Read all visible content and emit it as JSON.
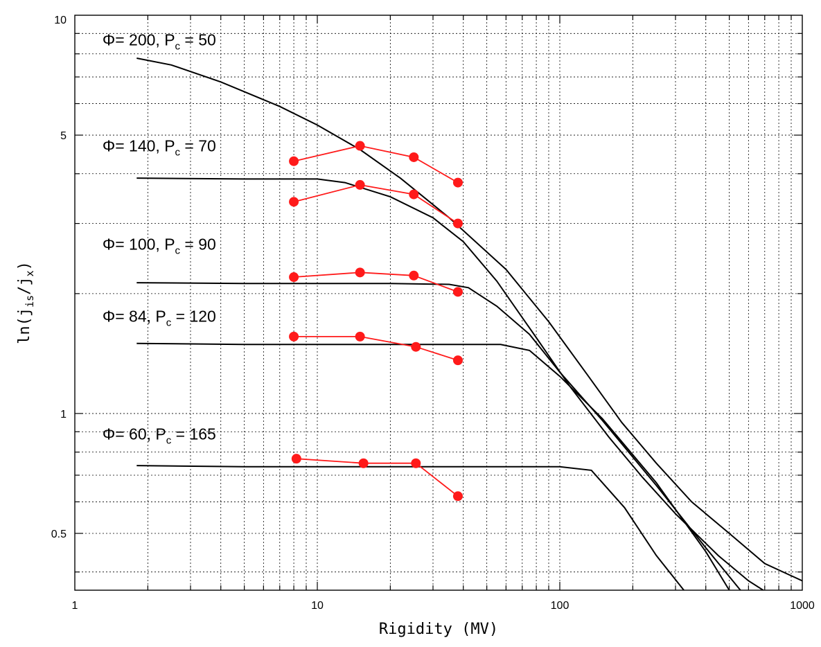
{
  "chart_data": {
    "type": "line",
    "title": "",
    "xlabel": "Rigidity (MV)",
    "ylabel_parts": {
      "base": "ln(j",
      "sub1": "is",
      "mid": "/j",
      "sub2": "x",
      "end": ")"
    },
    "xscale": "log",
    "yscale": "log",
    "xlim": [
      1,
      1000
    ],
    "ylim": [
      0.36,
      10
    ],
    "xticks": [
      1,
      10,
      100,
      1000
    ],
    "xtick_labels": [
      "1",
      "10",
      "100",
      "1000"
    ],
    "yticks": [
      0.5,
      1,
      5,
      10
    ],
    "ytick_labels": [
      "0.5",
      "1",
      "5",
      "10"
    ],
    "grid": true,
    "model_series": [
      {
        "x": [
          1.8,
          2.5,
          4,
          7,
          10,
          15,
          22,
          35,
          60,
          90,
          130,
          180,
          250,
          350,
          500,
          700,
          1000
        ],
        "y": [
          7.8,
          7.5,
          6.8,
          5.9,
          5.3,
          4.6,
          3.9,
          3.1,
          2.3,
          1.7,
          1.25,
          0.95,
          0.75,
          0.6,
          0.5,
          0.42,
          0.38
        ]
      },
      {
        "x": [
          1.8,
          5,
          10,
          13,
          20,
          30,
          40,
          55,
          80,
          110,
          160,
          220,
          300,
          450,
          600,
          800
        ],
        "y": [
          3.9,
          3.88,
          3.88,
          3.8,
          3.5,
          3.1,
          2.7,
          2.15,
          1.55,
          1.17,
          0.87,
          0.69,
          0.56,
          0.44,
          0.38,
          0.34
        ]
      },
      {
        "x": [
          1.8,
          5,
          10,
          20,
          35,
          42,
          55,
          75,
          100,
          150,
          250,
          400,
          600
        ],
        "y": [
          2.13,
          2.12,
          2.12,
          2.12,
          2.11,
          2.07,
          1.86,
          1.58,
          1.27,
          0.96,
          0.66,
          0.46,
          0.34
        ]
      },
      {
        "x": [
          1.8,
          5,
          10,
          30,
          57,
          75,
          100,
          150,
          250,
          400,
          500
        ],
        "y": [
          1.5,
          1.49,
          1.49,
          1.49,
          1.49,
          1.44,
          1.24,
          0.97,
          0.67,
          0.45,
          0.36
        ]
      },
      {
        "x": [
          1.8,
          5,
          10,
          50,
          100,
          135,
          185,
          250,
          350
        ],
        "y": [
          0.74,
          0.735,
          0.735,
          0.735,
          0.735,
          0.72,
          0.58,
          0.44,
          0.34
        ]
      }
    ],
    "observed_series": [
      {
        "x": [
          8,
          15,
          25,
          38
        ],
        "y": [
          4.3,
          4.7,
          4.4,
          3.8
        ]
      },
      {
        "x": [
          8,
          15,
          25,
          38
        ],
        "y": [
          3.4,
          3.75,
          3.55,
          3.0
        ]
      },
      {
        "x": [
          8,
          15,
          25,
          38
        ],
        "y": [
          2.2,
          2.26,
          2.22,
          2.02
        ]
      },
      {
        "x": [
          8,
          15,
          25.5,
          38
        ],
        "y": [
          1.56,
          1.56,
          1.47,
          1.36
        ]
      },
      {
        "x": [
          8.2,
          15.5,
          25.5,
          38
        ],
        "y": [
          0.77,
          0.75,
          0.75,
          0.62
        ]
      }
    ],
    "annotations": [
      {
        "phi": "Φ= 200,",
        "pc_value": "= 50",
        "anchor_x": 1.3,
        "anchor_y": 8.4
      },
      {
        "phi": "Φ= 140,",
        "pc_value": "= 70",
        "anchor_x": 1.3,
        "anchor_y": 4.55
      },
      {
        "phi": "Φ= 100,",
        "pc_value": "= 90",
        "anchor_x": 1.3,
        "anchor_y": 2.58
      },
      {
        "phi": "Φ= 84,",
        "pc_value": "= 120",
        "anchor_x": 1.3,
        "anchor_y": 1.7
      },
      {
        "phi": "Φ= 60,",
        "pc_value": "= 165",
        "anchor_x": 1.3,
        "anchor_y": 0.86
      }
    ],
    "pc_label": {
      "base": "P",
      "sub": "c"
    },
    "colors": {
      "model": "#000000",
      "observed": "#ff1a1a",
      "background": "#ffffff"
    }
  }
}
